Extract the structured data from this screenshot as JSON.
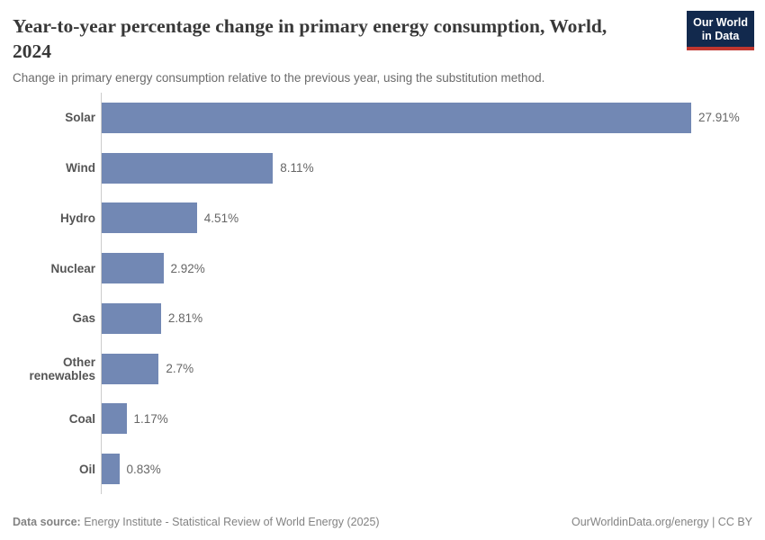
{
  "header": {
    "title": "Year-to-year percentage change in primary energy consumption, World, 2024",
    "subtitle": "Change in primary energy consumption relative to the previous year, using the substitution method.",
    "logo_line1": "Our World",
    "logo_line2": "in Data",
    "logo_bg_color": "#12294d",
    "logo_stripe_color": "#c0362f"
  },
  "chart_data": {
    "type": "bar",
    "orientation": "horizontal",
    "categories": [
      "Solar",
      "Wind",
      "Hydro",
      "Nuclear",
      "Gas",
      "Other renewables",
      "Coal",
      "Oil"
    ],
    "values": [
      27.91,
      8.11,
      4.51,
      2.92,
      2.81,
      2.7,
      1.17,
      0.83
    ],
    "value_labels": [
      "27.91%",
      "8.11%",
      "4.51%",
      "2.92%",
      "2.81%",
      "2.7%",
      "1.17%",
      "0.83%"
    ],
    "title": "Year-to-year percentage change in primary energy consumption, World, 2024",
    "xlabel": "",
    "ylabel": "",
    "xlim": [
      0,
      30
    ],
    "grid": false,
    "legend": false,
    "bar_color": "#7288b4",
    "axis_line_color": "#cccccc"
  },
  "footer": {
    "data_source_label": "Data source:",
    "data_source_value": " Energy Institute - Statistical Review of World Energy (2025)",
    "right_text": "OurWorldinData.org/energy | CC BY"
  }
}
